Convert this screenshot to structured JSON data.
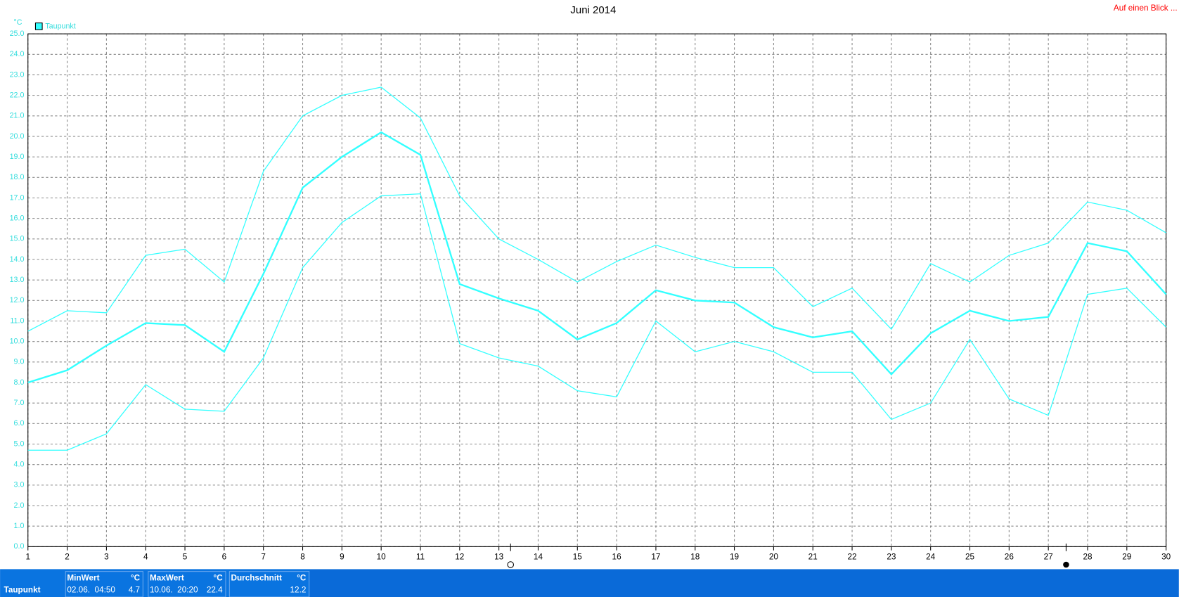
{
  "chart_data": {
    "type": "line",
    "title": "Juni 2014",
    "ylabel": "°C",
    "x": [
      1,
      2,
      3,
      4,
      5,
      6,
      7,
      8,
      9,
      10,
      11,
      12,
      13,
      14,
      15,
      16,
      17,
      18,
      19,
      20,
      21,
      22,
      23,
      24,
      25,
      26,
      27,
      28,
      29,
      30
    ],
    "xlim": [
      1,
      30
    ],
    "xticks": [
      1,
      2,
      3,
      4,
      5,
      6,
      7,
      8,
      9,
      10,
      11,
      12,
      13,
      14,
      15,
      16,
      17,
      18,
      19,
      20,
      21,
      22,
      23,
      24,
      25,
      26,
      27,
      28,
      29,
      30
    ],
    "ylim": [
      0,
      25
    ],
    "yticks": [
      {
        "value": 0,
        "label": "0.0"
      },
      {
        "value": 1,
        "label": "1.0"
      },
      {
        "value": 2,
        "label": "2.0"
      },
      {
        "value": 3,
        "label": "3.0"
      },
      {
        "value": 4,
        "label": "4.0"
      },
      {
        "value": 5,
        "label": "5.0"
      },
      {
        "value": 6,
        "label": "6.0"
      },
      {
        "value": 7,
        "label": "7.0"
      },
      {
        "value": 8,
        "label": "8.0"
      },
      {
        "value": 9,
        "label": "9.0"
      },
      {
        "value": 10,
        "label": "10.0"
      },
      {
        "value": 11,
        "label": "11.0"
      },
      {
        "value": 12,
        "label": "12.0"
      },
      {
        "value": 13,
        "label": "13.0"
      },
      {
        "value": 14,
        "label": "14.0"
      },
      {
        "value": 15,
        "label": "15.0"
      },
      {
        "value": 16,
        "label": "16.0"
      },
      {
        "value": 17,
        "label": "17.0"
      },
      {
        "value": 18,
        "label": "18.0"
      },
      {
        "value": 19,
        "label": "19.0"
      },
      {
        "value": 20,
        "label": "20.0"
      },
      {
        "value": 21,
        "label": "21.0"
      },
      {
        "value": 22,
        "label": "22.0"
      },
      {
        "value": 23,
        "label": "23.0"
      },
      {
        "value": 24,
        "label": "24.0"
      },
      {
        "value": 25,
        "label": "25.0"
      }
    ],
    "grid": true,
    "legend": "top-left",
    "series": [
      {
        "color": "#33ffff",
        "values": [
          10.5,
          11.5,
          11.4,
          14.2,
          14.5,
          12.9,
          18.3,
          21.0,
          22.0,
          22.4,
          20.9,
          17.1,
          15.0,
          14.0,
          12.9,
          13.9,
          14.7,
          14.1,
          13.6,
          13.6,
          11.7,
          12.6,
          10.6,
          13.8,
          12.9,
          14.2,
          14.8,
          16.8,
          16.4,
          15.3
        ]
      },
      {
        "name": "Taupunkt",
        "color": "#33ffff",
        "values": [
          8.0,
          8.6,
          9.8,
          10.9,
          10.8,
          9.5,
          13.3,
          17.5,
          19.0,
          20.2,
          19.1,
          12.8,
          12.1,
          11.5,
          10.1,
          10.9,
          12.5,
          12.0,
          11.9,
          10.7,
          10.2,
          10.5,
          8.4,
          10.4,
          11.5,
          11.0,
          11.2,
          14.8,
          14.4,
          12.3
        ]
      },
      {
        "color": "#33ffff",
        "values": [
          4.7,
          4.7,
          5.5,
          7.9,
          6.7,
          6.6,
          9.2,
          13.6,
          15.8,
          17.1,
          17.2,
          9.9,
          9.2,
          8.8,
          7.6,
          7.3,
          11.0,
          9.5,
          10.0,
          9.5,
          8.5,
          8.5,
          6.2,
          7.0,
          10.1,
          7.2,
          6.4,
          12.3,
          12.6,
          10.7
        ]
      }
    ]
  },
  "link": "Auf einen Blick ...",
  "footer": {
    "row_label": "Taupunkt",
    "stats": [
      {
        "label": "MinWert",
        "unit": "°C",
        "time": "02.06.  04:50",
        "value": 4.7
      },
      {
        "label": "MaxWert",
        "unit": "°C",
        "time": "10.06.  20:20",
        "value": 22.4
      },
      {
        "label": "Durchschnitt",
        "unit": "°C",
        "value": 12.2
      }
    ]
  }
}
